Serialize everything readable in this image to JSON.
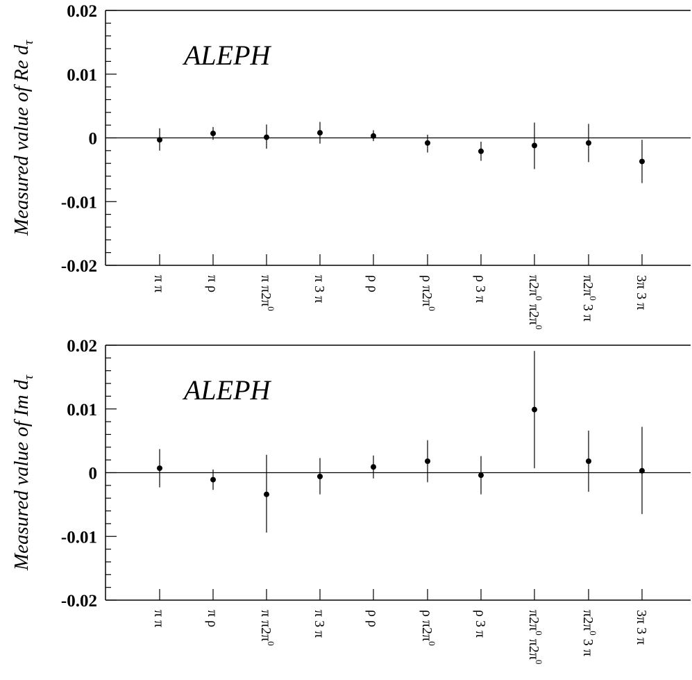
{
  "chart_data": [
    {
      "type": "scatter",
      "panel": "top",
      "annotation": "ALEPH",
      "ylabel": {
        "main": "Measured value of Re d",
        "sub": "τ"
      },
      "ylim": [
        -0.02,
        0.02
      ],
      "yticks": [
        "0.02",
        "0.01",
        "0",
        "-0.01",
        "-0.02"
      ],
      "ytick_values": [
        0.02,
        0.01,
        0,
        -0.01,
        -0.02
      ],
      "categories": [
        {
          "label": "π π"
        },
        {
          "label": "π ρ"
        },
        {
          "label": "π π2π",
          "sup": "0"
        },
        {
          "label": "π 3 π"
        },
        {
          "label": "ρ ρ"
        },
        {
          "label": "ρ π2π",
          "sup": "0"
        },
        {
          "label": "ρ 3 π"
        },
        {
          "label": "π2π",
          "sup": "0",
          "label2": " π2π",
          "sup2": "0"
        },
        {
          "label": "π2π",
          "sup": "0",
          "label2": " 3 π"
        },
        {
          "label": "3π 3 π"
        }
      ],
      "values": [
        -0.0003,
        0.0007,
        0.0001,
        0.0008,
        0.0003,
        -0.0008,
        -0.0021,
        -0.0012,
        -0.0008,
        -0.0037
      ],
      "err_low": [
        0.0017,
        0.001,
        0.0018,
        0.0017,
        0.0008,
        0.0015,
        0.0015,
        0.0037,
        0.003,
        0.0034
      ],
      "err_high": [
        0.0018,
        0.001,
        0.002,
        0.0017,
        0.0009,
        0.0013,
        0.0015,
        0.0036,
        0.003,
        0.0034
      ],
      "zero_line": true
    },
    {
      "type": "scatter",
      "panel": "bottom",
      "annotation": "ALEPH",
      "ylabel": {
        "main": "Measured value of Im d",
        "sub": "τ"
      },
      "ylim": [
        -0.02,
        0.02
      ],
      "yticks": [
        "0.02",
        "0.01",
        "0",
        "-0.01",
        "-0.02"
      ],
      "ytick_values": [
        0.02,
        0.01,
        0,
        -0.01,
        -0.02
      ],
      "categories": [
        {
          "label": "π π"
        },
        {
          "label": "π ρ"
        },
        {
          "label": "π π2π",
          "sup": "0"
        },
        {
          "label": "π 3 π"
        },
        {
          "label": "ρ ρ"
        },
        {
          "label": "ρ π2π",
          "sup": "0"
        },
        {
          "label": "ρ 3 π"
        },
        {
          "label": "π2π",
          "sup": "0",
          "label2": " π2π",
          "sup2": "0"
        },
        {
          "label": "π2π",
          "sup": "0",
          "label2": " 3 π"
        },
        {
          "label": "3π 3 π"
        }
      ],
      "values": [
        0.0007,
        -0.0011,
        -0.0034,
        -0.0006,
        0.0009,
        0.0018,
        -0.0004,
        0.0099,
        0.0018,
        0.0003
      ],
      "err_low": [
        0.003,
        0.0016,
        0.006,
        0.0028,
        0.0018,
        0.0033,
        0.003,
        0.0092,
        0.0048,
        0.0068
      ],
      "err_high": [
        0.003,
        0.0016,
        0.0062,
        0.0029,
        0.0018,
        0.0033,
        0.003,
        0.0092,
        0.0048,
        0.0069
      ],
      "zero_line": true
    }
  ]
}
